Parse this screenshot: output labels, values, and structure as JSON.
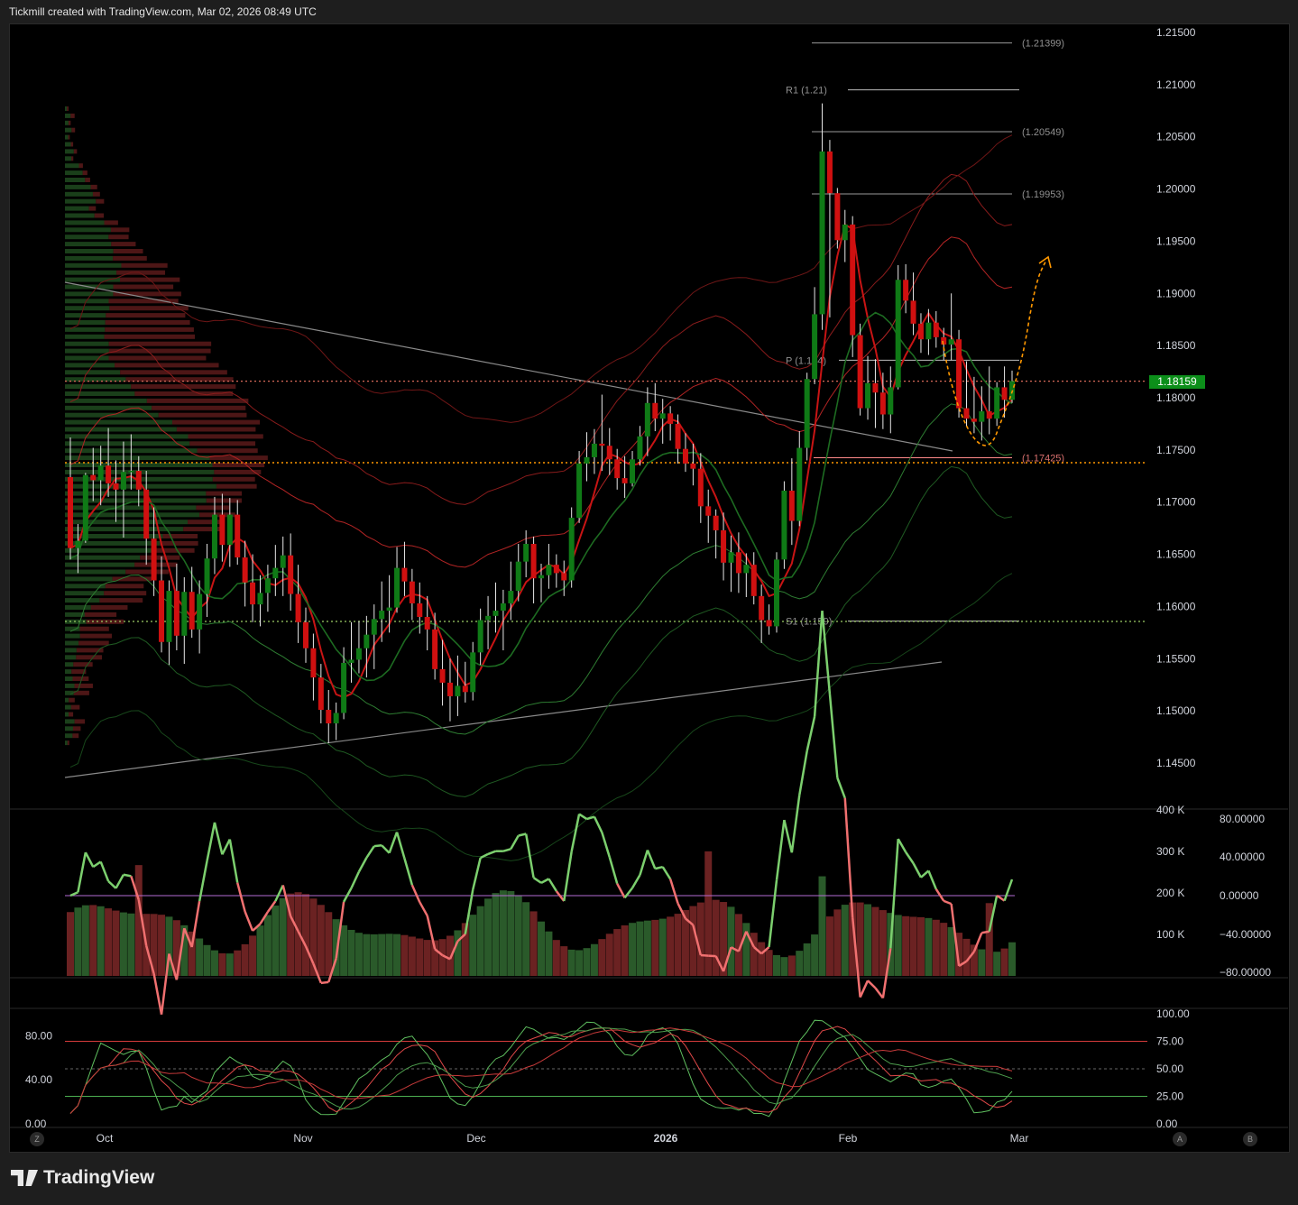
{
  "header": {
    "text": "Tickmill created with TradingView.com, Mar 02, 2026 08:49 UTC"
  },
  "footer": {
    "brand": "TradingView"
  },
  "buttons": {
    "z": "Z",
    "a": "A",
    "b": "B"
  },
  "current_price": "1.18159",
  "colors": {
    "up": "#0f7a16",
    "down": "#d01010",
    "accent_orange": "#ff9800",
    "bg": "#000000"
  },
  "chart_data": [
    {
      "type": "candlestick",
      "price_axis": {
        "ticks": [
          "1.21500",
          "1.21000",
          "1.20500",
          "1.20000",
          "1.19500",
          "1.19000",
          "1.18500",
          "1.18000",
          "1.17500",
          "1.17000",
          "1.16500",
          "1.16000",
          "1.15500",
          "1.15000",
          "1.14500"
        ],
        "range": [
          1.1425,
          1.2165
        ]
      },
      "time_axis": {
        "ticks": [
          "Oct",
          "Nov",
          "Dec",
          "2026",
          "Feb",
          "Mar"
        ]
      },
      "levels": [
        {
          "label": "(1.21399)",
          "value": 1.21399
        },
        {
          "label": "R1 (1.21)",
          "value": 1.2095
        },
        {
          "label": "(1.20549)",
          "value": 1.20549
        },
        {
          "label": "(1.19953)",
          "value": 1.19953
        },
        {
          "label": "P (1.184)",
          "value": 1.1836
        },
        {
          "label": "(1.17425)",
          "value": 1.17425
        },
        {
          "label": "S1 (1.159)",
          "value": 1.1586
        }
      ],
      "series": [
        {
          "start": "2025-09-26",
          "ohlc": [
            [
              1.1724,
              1.1762,
              1.1645,
              1.1656
            ],
            [
              1.1656,
              1.1679,
              1.1632,
              1.1663
            ],
            [
              1.1663,
              1.1728,
              1.1661,
              1.1726
            ],
            [
              1.1726,
              1.1752,
              1.1701,
              1.1721
            ],
            [
              1.1721,
              1.1754,
              1.1697,
              1.1735
            ],
            [
              1.1735,
              1.1771,
              1.1705,
              1.1718
            ],
            [
              1.1718,
              1.174,
              1.1681,
              1.1712
            ],
            [
              1.1712,
              1.1758,
              1.1666,
              1.1729
            ],
            [
              1.1729,
              1.1765,
              1.1712,
              1.173
            ],
            [
              1.173,
              1.1744,
              1.1696,
              1.1712
            ],
            [
              1.1712,
              1.173,
              1.164,
              1.1665
            ],
            [
              1.1665,
              1.1695,
              1.161,
              1.1625
            ],
            [
              1.1625,
              1.1648,
              1.1556,
              1.1566
            ],
            [
              1.1566,
              1.1625,
              1.1544,
              1.1615
            ],
            [
              1.1615,
              1.1641,
              1.1558,
              1.1572
            ],
            [
              1.1572,
              1.1628,
              1.1545,
              1.1614
            ],
            [
              1.1614,
              1.1638,
              1.157,
              1.1578
            ],
            [
              1.1578,
              1.1625,
              1.1555,
              1.1612
            ],
            [
              1.1612,
              1.166,
              1.159,
              1.1646
            ],
            [
              1.1646,
              1.1705,
              1.1631,
              1.1688
            ],
            [
              1.1688,
              1.1708,
              1.1643,
              1.1659
            ],
            [
              1.1659,
              1.1704,
              1.1638,
              1.1688
            ],
            [
              1.1688,
              1.1702,
              1.164,
              1.1647
            ],
            [
              1.1647,
              1.1663,
              1.16,
              1.1623
            ],
            [
              1.1623,
              1.165,
              1.1585,
              1.1602
            ],
            [
              1.1602,
              1.163,
              1.1581,
              1.1613
            ],
            [
              1.1613,
              1.164,
              1.1595,
              1.1627
            ],
            [
              1.1627,
              1.1659,
              1.161,
              1.1637
            ],
            [
              1.1637,
              1.1667,
              1.161,
              1.1649
            ],
            [
              1.1649,
              1.167,
              1.1596,
              1.1612
            ],
            [
              1.1612,
              1.164,
              1.1565,
              1.1585
            ],
            [
              1.1585,
              1.1599,
              1.1546,
              1.156
            ],
            [
              1.156,
              1.1574,
              1.151,
              1.1532
            ],
            [
              1.1532,
              1.1545,
              1.1488,
              1.1501
            ],
            [
              1.1501,
              1.152,
              1.1469,
              1.1488
            ],
            [
              1.1488,
              1.1508,
              1.1472,
              1.1498
            ],
            [
              1.1498,
              1.1561,
              1.1492,
              1.1546
            ],
            [
              1.1546,
              1.1585,
              1.1527,
              1.1549
            ],
            [
              1.1549,
              1.1586,
              1.1536,
              1.156
            ],
            [
              1.156,
              1.1591,
              1.1532,
              1.1573
            ],
            [
              1.1573,
              1.1602,
              1.154,
              1.1588
            ],
            [
              1.1588,
              1.1624,
              1.1566,
              1.1596
            ],
            [
              1.1596,
              1.163,
              1.1575,
              1.1599
            ],
            [
              1.1599,
              1.1657,
              1.1594,
              1.1637
            ],
            [
              1.1637,
              1.1662,
              1.161,
              1.1624
            ],
            [
              1.1624,
              1.1636,
              1.1587,
              1.1603
            ],
            [
              1.1603,
              1.1623,
              1.1574,
              1.159
            ],
            [
              1.159,
              1.161,
              1.1558,
              1.1578
            ],
            [
              1.1578,
              1.1594,
              1.153,
              1.154
            ],
            [
              1.154,
              1.1568,
              1.1505,
              1.1527
            ],
            [
              1.1527,
              1.155,
              1.149,
              1.1514
            ],
            [
              1.1514,
              1.1553,
              1.1495,
              1.1524
            ],
            [
              1.1524,
              1.1547,
              1.1508,
              1.1518
            ],
            [
              1.1518,
              1.1566,
              1.151,
              1.1556
            ],
            [
              1.1556,
              1.1598,
              1.1544,
              1.1587
            ],
            [
              1.1587,
              1.161,
              1.1559,
              1.1591
            ],
            [
              1.1591,
              1.1623,
              1.1575,
              1.1596
            ],
            [
              1.1596,
              1.1616,
              1.1558,
              1.1603
            ],
            [
              1.1603,
              1.1643,
              1.1587,
              1.1615
            ],
            [
              1.1615,
              1.166,
              1.1605,
              1.1643
            ],
            [
              1.1643,
              1.1673,
              1.1628,
              1.166
            ],
            [
              1.166,
              1.1667,
              1.1603,
              1.1627
            ],
            [
              1.1627,
              1.1641,
              1.1604,
              1.163
            ],
            [
              1.163,
              1.166,
              1.1617,
              1.164
            ],
            [
              1.164,
              1.165,
              1.1618,
              1.1632
            ],
            [
              1.1632,
              1.1644,
              1.161,
              1.1625
            ],
            [
              1.1625,
              1.1695,
              1.1618,
              1.1685
            ],
            [
              1.1685,
              1.1749,
              1.168,
              1.1737
            ],
            [
              1.1737,
              1.1767,
              1.172,
              1.1743
            ],
            [
              1.1743,
              1.177,
              1.1727,
              1.1756
            ],
            [
              1.1756,
              1.1803,
              1.173,
              1.1754
            ],
            [
              1.1754,
              1.1771,
              1.1726,
              1.1741
            ],
            [
              1.1741,
              1.1751,
              1.1712,
              1.1723
            ],
            [
              1.1723,
              1.1744,
              1.1704,
              1.1718
            ],
            [
              1.1718,
              1.1749,
              1.1715,
              1.1741
            ],
            [
              1.1741,
              1.1773,
              1.1735,
              1.1763
            ],
            [
              1.1763,
              1.181,
              1.1744,
              1.1795
            ],
            [
              1.1795,
              1.1814,
              1.1768,
              1.178
            ],
            [
              1.178,
              1.1799,
              1.1756,
              1.1785
            ],
            [
              1.1785,
              1.1792,
              1.1759,
              1.1775
            ],
            [
              1.1775,
              1.1784,
              1.1737,
              1.1751
            ],
            [
              1.1751,
              1.1766,
              1.1729,
              1.1737
            ],
            [
              1.1737,
              1.1756,
              1.1716,
              1.1732
            ],
            [
              1.1732,
              1.1747,
              1.168,
              1.1696
            ],
            [
              1.1696,
              1.1712,
              1.1661,
              1.1687
            ],
            [
              1.1687,
              1.1693,
              1.1646,
              1.1673
            ],
            [
              1.1673,
              1.169,
              1.1625,
              1.1642
            ],
            [
              1.1642,
              1.1668,
              1.1614,
              1.1652
            ],
            [
              1.1652,
              1.1671,
              1.1613,
              1.1632
            ],
            [
              1.1632,
              1.1651,
              1.1609,
              1.164
            ],
            [
              1.164,
              1.1652,
              1.1602,
              1.161
            ],
            [
              1.161,
              1.1621,
              1.1565,
              1.1587
            ],
            [
              1.1587,
              1.1602,
              1.1573,
              1.1581
            ],
            [
              1.1581,
              1.1652,
              1.1575,
              1.1645
            ],
            [
              1.1645,
              1.172,
              1.1636,
              1.1711
            ],
            [
              1.1711,
              1.1742,
              1.1659,
              1.1682
            ],
            [
              1.1682,
              1.1768,
              1.1677,
              1.1752
            ],
            [
              1.1752,
              1.1824,
              1.174,
              1.1818
            ],
            [
              1.1818,
              1.1906,
              1.1813,
              1.188
            ],
            [
              1.188,
              1.2082,
              1.1865,
              1.2036
            ],
            [
              1.2036,
              1.2047,
              1.1877,
              1.1996
            ],
            [
              1.1996,
              1.2001,
              1.1943,
              1.1951
            ],
            [
              1.1951,
              1.198,
              1.193,
              1.1966
            ],
            [
              1.1966,
              1.1974,
              1.1839,
              1.186
            ],
            [
              1.186,
              1.1871,
              1.1783,
              1.179
            ],
            [
              1.179,
              1.184,
              1.1779,
              1.1814
            ],
            [
              1.1814,
              1.1837,
              1.1771,
              1.1805
            ],
            [
              1.1805,
              1.1824,
              1.177,
              1.1784
            ],
            [
              1.1784,
              1.183,
              1.1766,
              1.181
            ],
            [
              1.181,
              1.1927,
              1.1808,
              1.1913
            ],
            [
              1.1913,
              1.1928,
              1.1881,
              1.1893
            ],
            [
              1.1893,
              1.192,
              1.186,
              1.1871
            ],
            [
              1.1871,
              1.1881,
              1.1843,
              1.1856
            ],
            [
              1.1856,
              1.1885,
              1.1841,
              1.1872
            ],
            [
              1.1872,
              1.1883,
              1.1848,
              1.1858
            ],
            [
              1.1858,
              1.1867,
              1.1836,
              1.1851
            ],
            [
              1.1851,
              1.19,
              1.1836,
              1.1856
            ],
            [
              1.1856,
              1.1865,
              1.1781,
              1.179
            ],
            [
              1.179,
              1.1835,
              1.1772,
              1.178
            ],
            [
              1.178,
              1.182,
              1.1766,
              1.1777
            ],
            [
              1.1777,
              1.1811,
              1.1759,
              1.1787
            ],
            [
              1.1787,
              1.183,
              1.1765,
              1.178
            ],
            [
              1.178,
              1.1815,
              1.1773,
              1.181
            ],
            [
              1.181,
              1.183,
              1.1781,
              1.1798
            ],
            [
              1.1798,
              1.1826,
              1.1795,
              1.1816
            ]
          ]
        }
      ],
      "indicators": [
        {
          "name": "Volume",
          "axis_ticks": [
            "400 K",
            "300 K",
            "200 K",
            "100 K"
          ]
        },
        {
          "name": "Oscillator",
          "axis_ticks": [
            "80.00000",
            "40.00000",
            "0.00000",
            "−40.00000",
            "−80.00000"
          ]
        },
        {
          "name": "Stochastic",
          "axis_ticks_right": [
            "100.00",
            "75.00",
            "50.00",
            "25.00",
            "0.00"
          ],
          "axis_ticks_left": [
            "80.00",
            "40.00",
            "0.00"
          ]
        }
      ]
    }
  ]
}
